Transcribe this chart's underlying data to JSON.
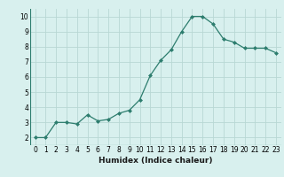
{
  "x": [
    0,
    1,
    2,
    3,
    4,
    5,
    6,
    7,
    8,
    9,
    10,
    11,
    12,
    13,
    14,
    15,
    16,
    17,
    18,
    19,
    20,
    21,
    22,
    23
  ],
  "y": [
    2.0,
    2.0,
    3.0,
    3.0,
    2.9,
    3.5,
    3.1,
    3.2,
    3.6,
    3.8,
    4.5,
    6.1,
    7.1,
    7.8,
    9.0,
    10.0,
    10.0,
    9.5,
    8.5,
    8.3,
    7.9,
    7.9,
    7.9,
    7.6
  ],
  "line_color": "#2d7d6e",
  "marker": "D",
  "marker_size": 2.0,
  "bg_color": "#d8f0ee",
  "grid_color": "#b8d8d4",
  "xlabel": "Humidex (Indice chaleur)",
  "xlim": [
    -0.5,
    23.5
  ],
  "ylim": [
    1.5,
    10.5
  ],
  "yticks": [
    2,
    3,
    4,
    5,
    6,
    7,
    8,
    9,
    10
  ],
  "xticks": [
    0,
    1,
    2,
    3,
    4,
    5,
    6,
    7,
    8,
    9,
    10,
    11,
    12,
    13,
    14,
    15,
    16,
    17,
    18,
    19,
    20,
    21,
    22,
    23
  ],
  "tick_fontsize": 5.5,
  "xlabel_fontsize": 6.5,
  "line_width": 0.9
}
